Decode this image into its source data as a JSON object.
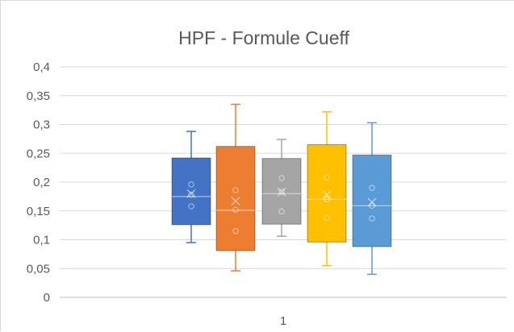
{
  "chart_data": {
    "type": "box",
    "title": "HPF  - Formule Cueff",
    "categories": [
      "1"
    ],
    "ylim": [
      0,
      0.4
    ],
    "yticks": [
      "0",
      "0,05",
      "0,1",
      "0,15",
      "0,2",
      "0,25",
      "0,3",
      "0,35",
      "0,4"
    ],
    "grid": true,
    "legend": "none",
    "series": [
      {
        "color": "#4472c4",
        "whisker_low": 0.095,
        "q1": 0.126,
        "median": 0.175,
        "q3": 0.242,
        "whisker_high": 0.288,
        "mean": 0.18,
        "points": [
          0.158,
          0.178,
          0.196
        ]
      },
      {
        "color": "#ed7d31",
        "whisker_low": 0.046,
        "q1": 0.081,
        "median": 0.151,
        "q3": 0.262,
        "whisker_high": 0.335,
        "mean": 0.167,
        "points": [
          0.115,
          0.152,
          0.186
        ]
      },
      {
        "color": "#a5a5a5",
        "whisker_low": 0.106,
        "q1": 0.127,
        "median": 0.18,
        "q3": 0.241,
        "whisker_high": 0.274,
        "mean": 0.183,
        "points": [
          0.149,
          0.183,
          0.207
        ]
      },
      {
        "color": "#ffc000",
        "whisker_low": 0.055,
        "q1": 0.096,
        "median": 0.17,
        "q3": 0.265,
        "whisker_high": 0.322,
        "mean": 0.178,
        "points": [
          0.138,
          0.17,
          0.208
        ]
      },
      {
        "color": "#5b9bd5",
        "whisker_low": 0.04,
        "q1": 0.088,
        "median": 0.159,
        "q3": 0.247,
        "whisker_high": 0.303,
        "mean": 0.165,
        "points": [
          0.137,
          0.159,
          0.19
        ]
      }
    ]
  }
}
